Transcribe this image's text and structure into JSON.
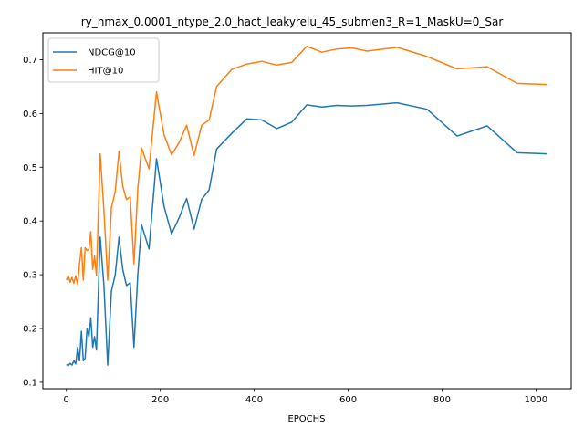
{
  "chart_data": {
    "type": "line",
    "title": "ry_nmax_0.0001_ntype_2.0_hact_leakyrelu_45_submen3_R=1_MaskU=0_Sar",
    "xlabel": "EPOCHS",
    "ylabel": "",
    "xlim": [
      -50,
      1075
    ],
    "ylim": [
      0.088,
      0.75
    ],
    "xticks": [
      0,
      200,
      400,
      600,
      800,
      1000
    ],
    "yticks": [
      0.1,
      0.2,
      0.3,
      0.4,
      0.5,
      0.6,
      0.7
    ],
    "legend_position": "upper-left",
    "grid": false,
    "series": [
      {
        "name": "NDCG@10",
        "color": "#1f77b4",
        "x": [
          0,
          4,
          8,
          12,
          16,
          20,
          24,
          28,
          32,
          36,
          40,
          44,
          48,
          52,
          56,
          60,
          64,
          72,
          80,
          88,
          96,
          104,
          112,
          120,
          128,
          136,
          144,
          152,
          160,
          176,
          192,
          208,
          224,
          240,
          256,
          272,
          288,
          304,
          320,
          352,
          384,
          416,
          448,
          480,
          512,
          544,
          576,
          608,
          640,
          704,
          768,
          832,
          896,
          960,
          1024
        ],
        "y": [
          0.133,
          0.131,
          0.135,
          0.132,
          0.14,
          0.134,
          0.165,
          0.14,
          0.195,
          0.14,
          0.145,
          0.2,
          0.185,
          0.22,
          0.165,
          0.185,
          0.16,
          0.37,
          0.28,
          0.132,
          0.27,
          0.3,
          0.37,
          0.31,
          0.28,
          0.285,
          0.165,
          0.3,
          0.393,
          0.348,
          0.516,
          0.427,
          0.376,
          0.406,
          0.442,
          0.385,
          0.44,
          0.458,
          0.534,
          0.563,
          0.59,
          0.588,
          0.572,
          0.584,
          0.616,
          0.612,
          0.615,
          0.614,
          0.615,
          0.62,
          0.608,
          0.558,
          0.577,
          0.527,
          0.525
        ]
      },
      {
        "name": "HIT@10",
        "color": "#ff7f0e",
        "x": [
          0,
          4,
          8,
          12,
          16,
          20,
          24,
          28,
          32,
          36,
          40,
          44,
          48,
          52,
          56,
          60,
          64,
          72,
          80,
          88,
          96,
          104,
          112,
          120,
          128,
          136,
          144,
          152,
          160,
          176,
          192,
          208,
          224,
          240,
          256,
          272,
          288,
          304,
          320,
          352,
          384,
          416,
          448,
          480,
          512,
          544,
          576,
          608,
          640,
          704,
          768,
          832,
          896,
          960,
          1024
        ],
        "y": [
          0.29,
          0.298,
          0.286,
          0.295,
          0.284,
          0.298,
          0.282,
          0.32,
          0.35,
          0.29,
          0.35,
          0.345,
          0.347,
          0.38,
          0.31,
          0.335,
          0.298,
          0.525,
          0.42,
          0.29,
          0.425,
          0.455,
          0.53,
          0.465,
          0.44,
          0.445,
          0.32,
          0.46,
          0.536,
          0.497,
          0.64,
          0.56,
          0.523,
          0.546,
          0.578,
          0.522,
          0.578,
          0.588,
          0.65,
          0.682,
          0.692,
          0.697,
          0.69,
          0.695,
          0.725,
          0.714,
          0.72,
          0.722,
          0.716,
          0.723,
          0.706,
          0.683,
          0.687,
          0.656,
          0.654
        ]
      }
    ]
  }
}
